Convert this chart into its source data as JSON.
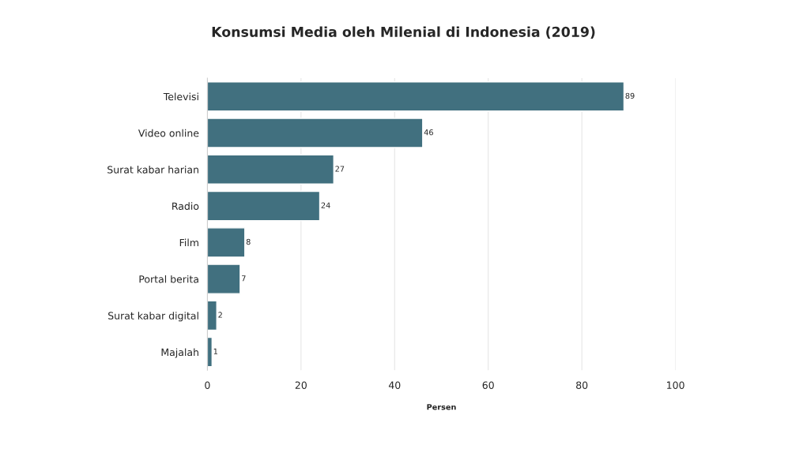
{
  "chart_data": {
    "type": "bar",
    "orientation": "horizontal",
    "title": "Konsumsi Media oleh Milenial di Indonesia (2019)",
    "xlabel": "Persen",
    "categories": [
      "Televisi",
      "Video online",
      "Surat kabar harian",
      "Radio",
      "Film",
      "Portal berita",
      "Surat kabar digital",
      "Majalah"
    ],
    "values": [
      89,
      46,
      27,
      24,
      8,
      7,
      2,
      1
    ],
    "color": "#41707f",
    "xlim": [
      0,
      100
    ],
    "xticks": [
      0,
      20,
      40,
      60,
      80,
      100
    ],
    "grid": "x",
    "data_labels": true
  }
}
